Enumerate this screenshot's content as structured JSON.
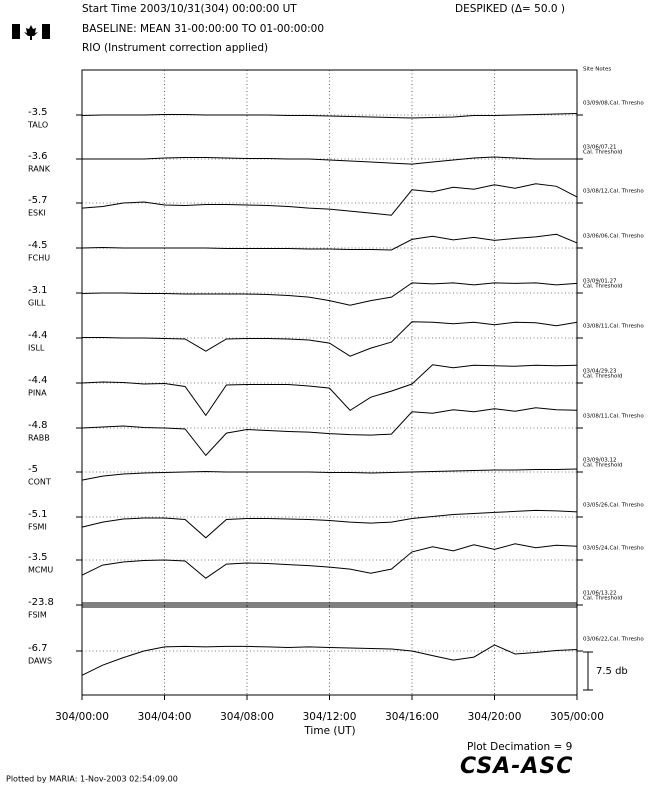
{
  "chart_data": {
    "type": "line",
    "header": {
      "start_time": "Start Time 2003/10/31(304) 00:00:00 UT",
      "despiked": "DESPIKED (Δ= 50.0  )",
      "baseline": "BASELINE: MEAN 31-00:00:00 TO 01-00:00:00",
      "correction": "RIO (Instrument correction applied)"
    },
    "site_notes_title": "Site Notes",
    "x_label": "Time (UT)",
    "x": [
      0,
      1,
      2,
      3,
      4,
      5,
      6,
      7,
      8,
      9,
      10,
      11,
      12,
      13,
      14,
      15,
      16,
      17,
      18,
      19,
      20,
      21,
      22,
      23,
      24
    ],
    "xlim": [
      0,
      24
    ],
    "xticks": [
      {
        "value": 0,
        "label": "304/00:00"
      },
      {
        "value": 4,
        "label": "304/04:00"
      },
      {
        "value": 8,
        "label": "304/08:00"
      },
      {
        "value": 12,
        "label": "304/12:00"
      },
      {
        "value": 16,
        "label": "304/16:00"
      },
      {
        "value": 20,
        "label": "304/20:00"
      },
      {
        "value": 24,
        "label": "305/00:00"
      }
    ],
    "grid": true,
    "scale_bar": {
      "value": 7.5,
      "label": "7.5 db"
    },
    "series": [
      {
        "name": "TALO",
        "baseline": -3.5,
        "note": [
          "03/09/08,Cal. Thresho"
        ],
        "values": [
          -3.6,
          -3.5,
          -3.5,
          -3.5,
          -3.4,
          -3.4,
          -3.5,
          -3.5,
          -3.5,
          -3.5,
          -3.6,
          -3.6,
          -3.7,
          -3.8,
          -3.9,
          -4.0,
          -4.1,
          -4.0,
          -3.9,
          -3.6,
          -3.6,
          -3.5,
          -3.4,
          -3.3,
          -3.2
        ]
      },
      {
        "name": "RANK",
        "baseline": -3.6,
        "note": [
          "03/06/07,21",
          "Cal. Threshold"
        ],
        "values": [
          -3.6,
          -3.6,
          -3.6,
          -3.6,
          -3.4,
          -3.3,
          -3.3,
          -3.4,
          -3.5,
          -3.5,
          -3.6,
          -3.6,
          -3.8,
          -4.0,
          -4.2,
          -4.4,
          -4.6,
          -4.2,
          -3.8,
          -3.4,
          -3.2,
          -3.4,
          -3.6,
          -3.6,
          -3.6
        ]
      },
      {
        "name": "ESKI",
        "baseline": -5.7,
        "note": [
          "03/08/12,Cal. Thresho"
        ],
        "values": [
          -6.7,
          -6.4,
          -5.7,
          -5.5,
          -6.1,
          -6.2,
          -6.0,
          -6.0,
          -6.1,
          -6.2,
          -6.4,
          -6.7,
          -6.9,
          -7.3,
          -7.7,
          -8.1,
          -3.1,
          -3.5,
          -2.6,
          -3.0,
          -2.1,
          -2.8,
          -1.9,
          -2.4,
          -4.5
        ]
      },
      {
        "name": "FCHU",
        "baseline": -4.5,
        "note": [
          "03/06/06,Cal. Thresho"
        ],
        "values": [
          -4.5,
          -4.4,
          -4.5,
          -4.5,
          -4.5,
          -4.5,
          -4.5,
          -4.6,
          -4.6,
          -4.6,
          -4.6,
          -4.7,
          -4.7,
          -4.8,
          -4.8,
          -4.9,
          -2.8,
          -2.2,
          -2.9,
          -2.4,
          -3.0,
          -2.6,
          -2.3,
          -1.8,
          -3.5
        ]
      },
      {
        "name": "GILL",
        "baseline": -3.1,
        "note": [
          "03/09/01,27",
          "Cal. Threshold"
        ],
        "values": [
          -3.2,
          -3.1,
          -3.1,
          -3.2,
          -3.2,
          -3.3,
          -3.3,
          -3.3,
          -3.3,
          -3.4,
          -3.6,
          -3.9,
          -4.6,
          -5.5,
          -4.6,
          -3.9,
          -1.1,
          -1.3,
          -1.1,
          -1.5,
          -1.1,
          -1.2,
          -1.1,
          -1.5,
          -1.2
        ]
      },
      {
        "name": "ISLL",
        "baseline": -4.4,
        "note": [
          "03/08/11,Cal. Thresho"
        ],
        "values": [
          -4.3,
          -4.3,
          -4.4,
          -4.4,
          -4.5,
          -4.6,
          -7.0,
          -4.6,
          -4.5,
          -4.5,
          -4.6,
          -4.8,
          -5.4,
          -8.0,
          -6.4,
          -5.2,
          -1.2,
          -1.3,
          -1.6,
          -1.3,
          -1.8,
          -1.3,
          -1.4,
          -2.0,
          -1.3
        ]
      },
      {
        "name": "PINA",
        "baseline": -4.4,
        "note": [
          "03/04/29,23",
          "Cal. Threshold"
        ],
        "values": [
          -4.4,
          -4.2,
          -4.3,
          -4.6,
          -4.5,
          -5.1,
          -10.8,
          -4.8,
          -4.7,
          -4.7,
          -4.7,
          -5.0,
          -5.4,
          -9.8,
          -7.2,
          -6.0,
          -4.6,
          -0.8,
          -1.4,
          -0.9,
          -1.0,
          -1.1,
          -0.9,
          -1.0,
          -0.9
        ]
      },
      {
        "name": "RABB",
        "baseline": -4.8,
        "note": [
          "03/08/11,Cal. Thresho"
        ],
        "values": [
          -4.8,
          -4.6,
          -4.4,
          -4.7,
          -4.8,
          -5.0,
          -10.2,
          -5.8,
          -5.1,
          -5.3,
          -5.5,
          -5.6,
          -5.9,
          -6.1,
          -6.2,
          -6.0,
          -1.6,
          -1.9,
          -1.2,
          -1.6,
          -1.0,
          -1.5,
          -0.8,
          -1.2,
          -1.3
        ]
      },
      {
        "name": "CONT",
        "baseline": -5.0,
        "note": [
          "03/09/03,12",
          "Cal. Threshold"
        ],
        "values": [
          -6.6,
          -5.8,
          -5.4,
          -5.2,
          -5.1,
          -5.0,
          -4.9,
          -5.0,
          -5.0,
          -5.0,
          -5.0,
          -5.0,
          -5.1,
          -5.1,
          -5.2,
          -5.1,
          -5.0,
          -4.9,
          -4.8,
          -4.7,
          -4.6,
          -4.6,
          -4.5,
          -4.5,
          -4.4
        ]
      },
      {
        "name": "FSMI",
        "baseline": -5.1,
        "note": [
          "03/05/26,Cal. Thresho"
        ],
        "values": [
          -7.1,
          -6.1,
          -5.5,
          -5.3,
          -5.3,
          -5.6,
          -9.2,
          -5.6,
          -5.4,
          -5.4,
          -5.5,
          -5.6,
          -5.8,
          -6.1,
          -6.3,
          -6.1,
          -5.4,
          -5.0,
          -4.6,
          -4.4,
          -4.2,
          -4.0,
          -3.8,
          -3.9,
          -4.1
        ]
      },
      {
        "name": "MCMU",
        "baseline": -3.5,
        "note": [
          "03/05/24,Cal. Thresho"
        ],
        "values": [
          -6.5,
          -4.5,
          -3.9,
          -3.6,
          -3.5,
          -3.7,
          -7.1,
          -4.3,
          -4.1,
          -4.2,
          -4.4,
          -4.6,
          -4.9,
          -5.3,
          -6.1,
          -5.3,
          -1.9,
          -0.9,
          -1.7,
          -0.5,
          -1.4,
          -0.3,
          -1.1,
          -0.6,
          -0.8
        ]
      },
      {
        "name": "FSIM",
        "baseline": -23.8,
        "note": [
          "01/06/13,22",
          "Cal. Threshold"
        ],
        "values": [
          -23.8,
          -23.8,
          -23.8,
          -23.8,
          -23.8,
          -23.8,
          -23.8,
          -23.8,
          -23.8,
          -23.8,
          -23.8,
          -23.8,
          -23.8,
          -23.8,
          -23.8,
          -23.8,
          -23.8,
          -23.8,
          -23.8,
          -23.8,
          -23.8,
          -23.8,
          -23.8,
          -23.8,
          -23.8
        ]
      },
      {
        "name": "DAWS",
        "baseline": -6.7,
        "note": [
          "03/06/22,Cal. Thresho"
        ],
        "values": [
          -11.5,
          -9.5,
          -8.0,
          -6.7,
          -5.9,
          -5.8,
          -5.9,
          -5.8,
          -5.8,
          -5.9,
          -6.0,
          -5.9,
          -6.0,
          -6.1,
          -6.2,
          -6.3,
          -6.7,
          -7.6,
          -8.5,
          -7.9,
          -5.5,
          -7.3,
          -7.0,
          -6.6,
          -6.4
        ]
      }
    ],
    "decimation": "Plot Decimation = 9",
    "logo": "CSA-ASC",
    "plotted_by": "Plotted by MARIA:  1-Nov-2003 02:54:09.00"
  }
}
